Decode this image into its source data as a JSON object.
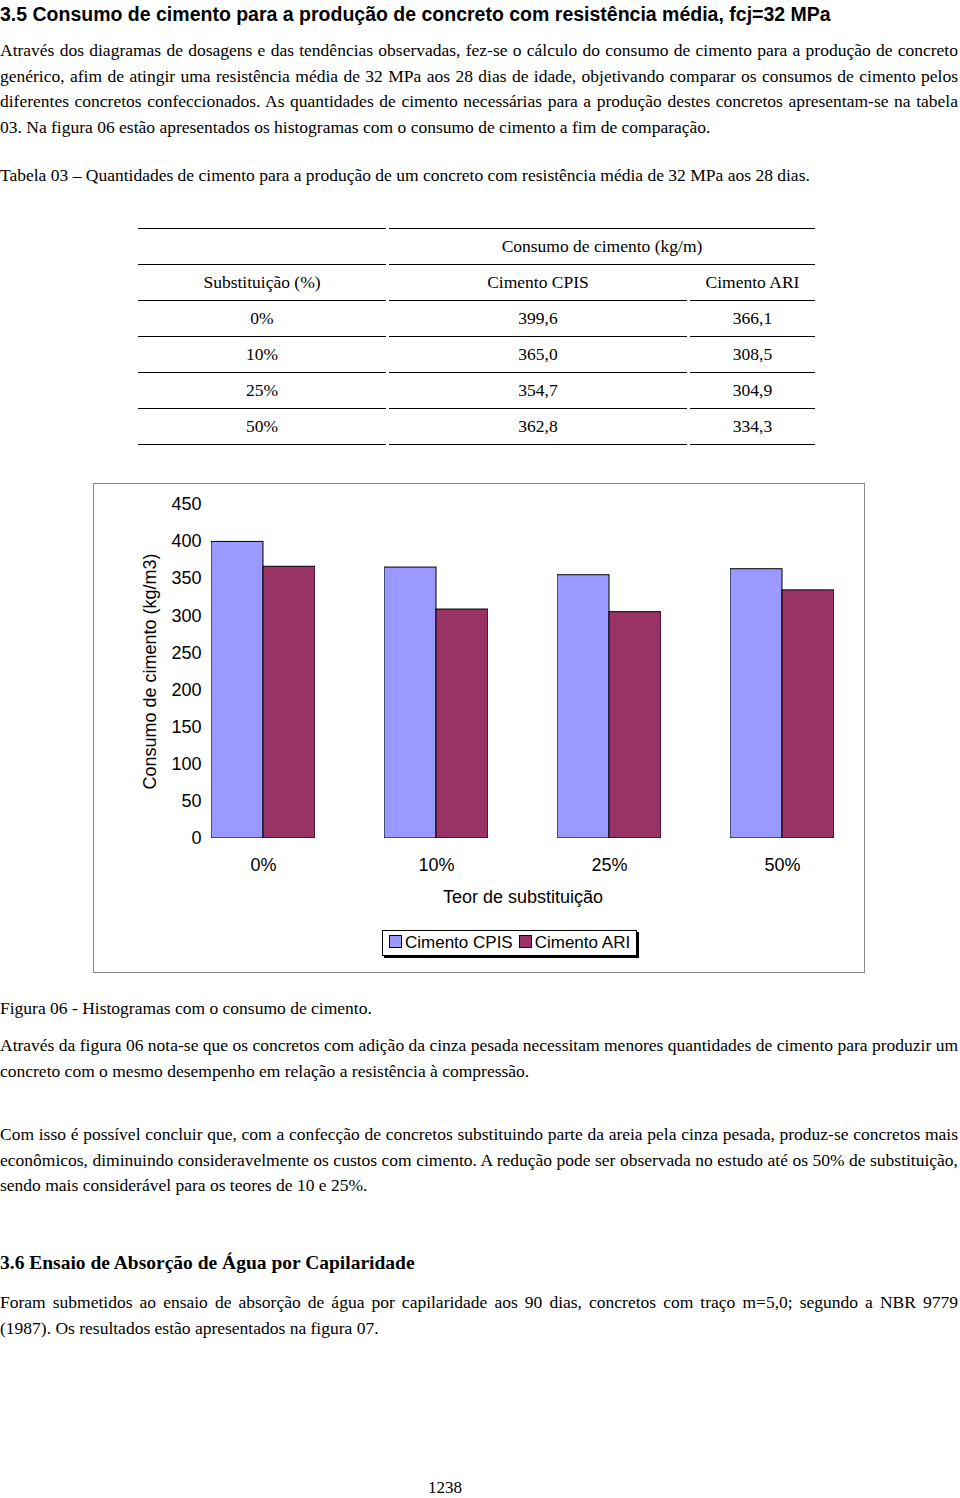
{
  "heading": "3.5 Consumo de cimento para a produção de concreto com resistência média, fcj=32 MPa",
  "paragraph_1": "Através dos diagramas de dosagens e das tendências observadas, fez-se o cálculo do consumo de cimento para a produção de concreto genérico, afim de atingir uma resistência média de 32 MPa aos 28 dias de idade, objetivando comparar os consumos de cimento pelos diferentes concretos confeccionados. As quantidades de cimento necessárias para a produção destes concretos apresentam-se na tabela 03. Na figura 06 estão apresentados os histogramas com o consumo de cimento a fim de comparação.",
  "table": {
    "title": "Tabela 03 – Quantidades de cimento para a produção de um concreto com resistência média de 32 MPa aos 28 dias.",
    "group_header": "Consumo de cimento (kg/m)",
    "columns": [
      "Substituição (%)",
      "Cimento CPIS",
      "Cimento ARI"
    ],
    "rows": [
      [
        "0%",
        "399,6",
        "366,1"
      ],
      [
        "10%",
        "365,0",
        "308,5"
      ],
      [
        "25%",
        "354,7",
        "304,9"
      ],
      [
        "50%",
        "362,8",
        "334,3"
      ]
    ]
  },
  "chart_data": {
    "type": "bar",
    "categories": [
      "0%",
      "10%",
      "25%",
      "50%"
    ],
    "series": [
      {
        "name": "Cimento CPIS",
        "color": "#9999ff",
        "values": [
          399.6,
          365.0,
          354.7,
          362.8
        ]
      },
      {
        "name": "Cimento ARI",
        "color": "#993366",
        "values": [
          366.1,
          308.5,
          304.9,
          334.3
        ]
      }
    ],
    "x_label": "Teor de substituição",
    "y_label": "Consumo de cimento (kg/m3)",
    "ylim": [
      0,
      450
    ],
    "yticks": [
      0,
      50,
      100,
      150,
      200,
      250,
      300,
      350,
      400,
      450
    ],
    "grid": false,
    "legend": "bottom"
  },
  "figure_caption": "Figura 06 - Histogramas com o consumo de cimento.",
  "paragraph_2": "Através da figura 06 nota-se que os concretos com adição da cinza pesada necessitam menores quantidades de cimento para produzir um concreto com o mesmo desempenho em relação a resistência à compressão.",
  "paragraph_3": "Com isso é possível concluir que, com a confecção de concretos substituindo parte da areia pela cinza pesada, produz-se concretos mais econômicos, diminuindo consideravelmente os custos com cimento. A redução pode ser observada no estudo até os 50% de substituição, sendo mais considerável para os teores de 10 e 25%.",
  "heading_2": "3.6 Ensaio de Absorção de Água por Capilaridade",
  "paragraph_4": "Foram submetidos ao ensaio de absorção de água por capilaridade aos 90 dias, concretos com traço m=5,0; segundo a NBR 9779 (1987). Os resultados estão apresentados na figura 07.",
  "page_number": "1238"
}
